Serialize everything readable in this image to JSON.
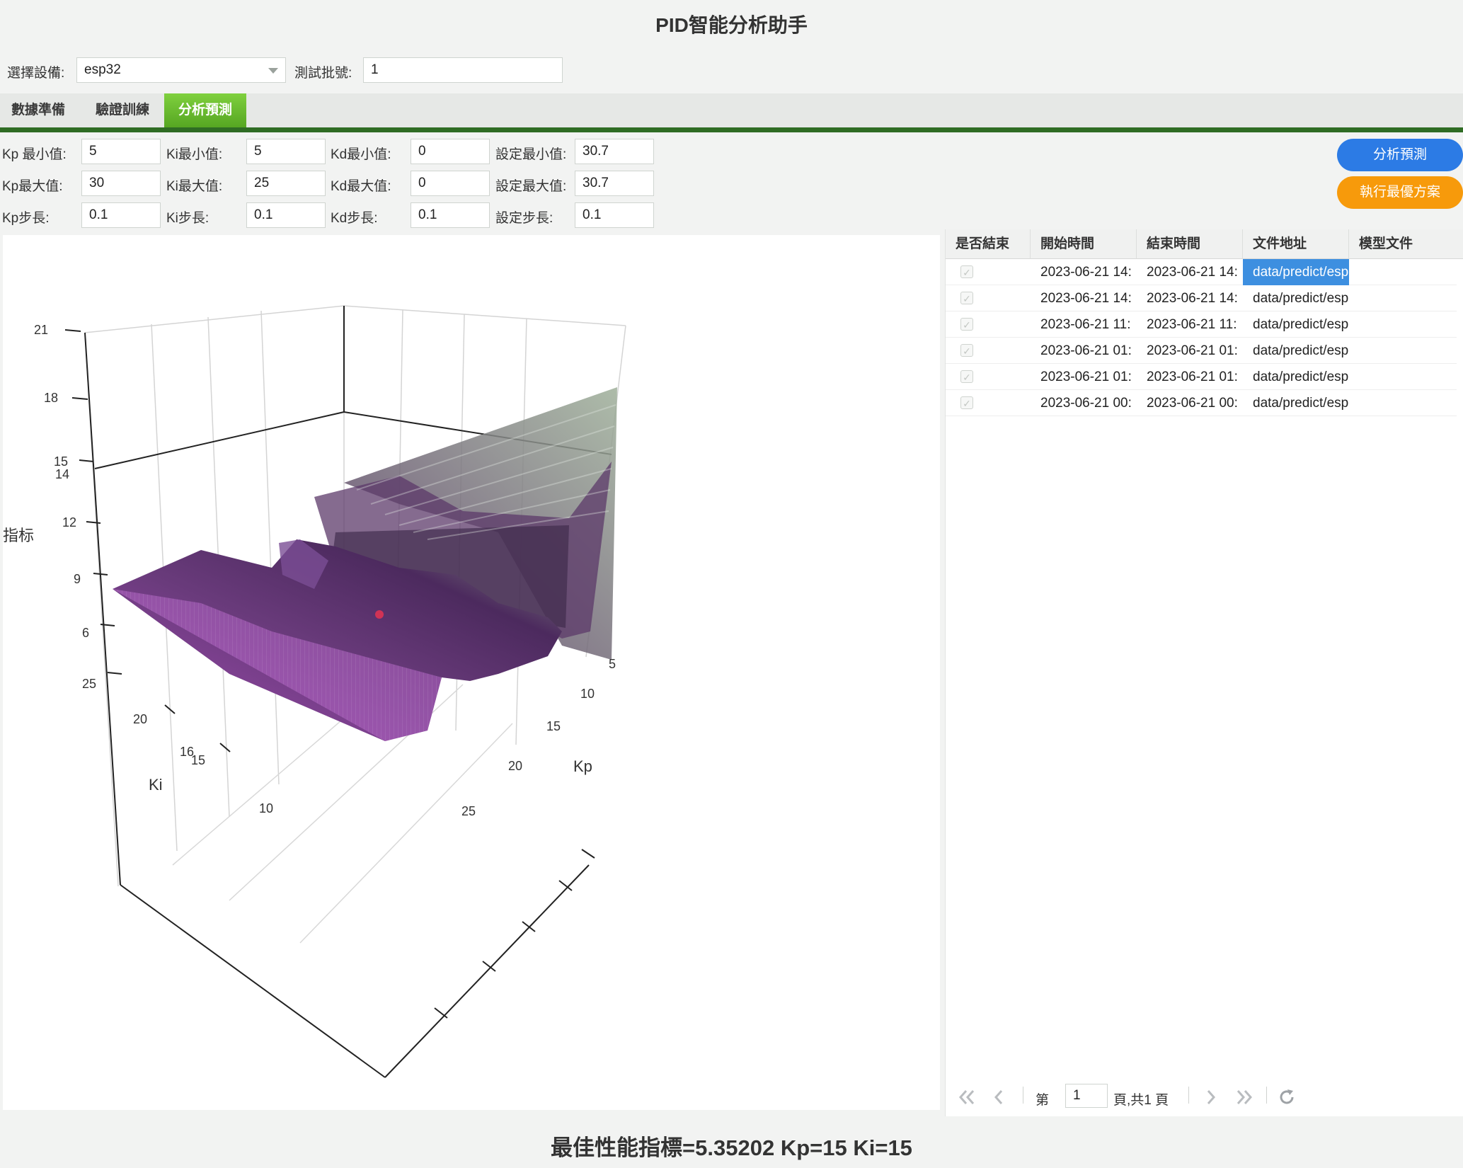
{
  "app_title": "PID智能分析助手",
  "device": {
    "label": "選擇設備:",
    "value": "esp32"
  },
  "batch": {
    "label": "測試批號:",
    "value": "1"
  },
  "tabs": [
    {
      "label": "數據準備"
    },
    {
      "label": "驗證訓練"
    },
    {
      "label": "分析預測"
    }
  ],
  "params": {
    "kp_min": {
      "label": "Kp 最小值:",
      "value": "5"
    },
    "ki_min": {
      "label": "Ki最小值:",
      "value": "5"
    },
    "kd_min": {
      "label": "Kd最小值:",
      "value": "0"
    },
    "set_min": {
      "label": "設定最小值:",
      "value": "30.7"
    },
    "kp_max": {
      "label": "Kp最大值:",
      "value": "30"
    },
    "ki_max": {
      "label": "Ki最大值:",
      "value": "25"
    },
    "kd_max": {
      "label": "Kd最大值:",
      "value": "0"
    },
    "set_max": {
      "label": "設定最大值:",
      "value": "30.7"
    },
    "kp_step": {
      "label": "Kp步長:",
      "value": "0.1"
    },
    "ki_step": {
      "label": "Ki步長:",
      "value": "0.1"
    },
    "kd_step": {
      "label": "Kd步長:",
      "value": "0.1"
    },
    "set_step": {
      "label": "設定步長:",
      "value": "0.1"
    }
  },
  "buttons": {
    "predict": "分析預測",
    "run_best": "執行最優方案"
  },
  "chart_data": {
    "type": "surface3d",
    "zlabel": "指标",
    "xlabel": "Kp",
    "ylabel": "Ki",
    "z_ticks": [
      "21",
      "18",
      "15",
      "14",
      "12",
      "9",
      "6"
    ],
    "kp_ticks": [
      "5",
      "10",
      "15",
      "20",
      "25"
    ],
    "ki_ticks": [
      "25",
      "20",
      "16",
      "15",
      "10"
    ],
    "colors": {
      "low": "#a24ab4",
      "mid": "#4c2a5e",
      "high": "#8a9a86"
    },
    "best_point": {
      "kp": 15,
      "ki": 15,
      "value": 5.35202
    }
  },
  "table": {
    "columns": [
      "是否結束",
      "開始時間",
      "結束時間",
      "文件地址",
      "模型文件"
    ],
    "rows": [
      {
        "start": "2023-06-21 14:",
        "end": "2023-06-21 14:",
        "path": "data/predict/esp"
      },
      {
        "start": "2023-06-21 14:",
        "end": "2023-06-21 14:",
        "path": "data/predict/esp"
      },
      {
        "start": "2023-06-21 11:",
        "end": "2023-06-21 11:",
        "path": "data/predict/esp"
      },
      {
        "start": "2023-06-21 01:",
        "end": "2023-06-21 01:",
        "path": "data/predict/esp"
      },
      {
        "start": "2023-06-21 01:",
        "end": "2023-06-21 01:",
        "path": "data/predict/esp"
      },
      {
        "start": "2023-06-21 00:",
        "end": "2023-06-21 00:",
        "path": "data/predict/esp"
      }
    ],
    "check_glyph": "✓"
  },
  "pager": {
    "page_prefix": "第",
    "page_value": "1",
    "page_suffix": "頁,共1 頁"
  },
  "result_text": "最佳性能指標=5.35202 Kp=15 Ki=15"
}
